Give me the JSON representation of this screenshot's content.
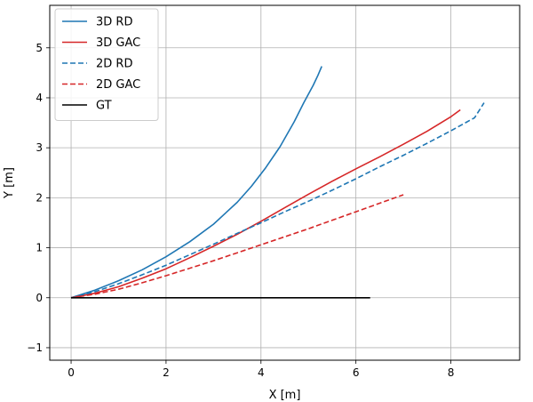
{
  "chart_data": {
    "type": "line",
    "xlabel": "X [m]",
    "ylabel": "Y [m]",
    "xlim": [
      -0.45,
      9.45
    ],
    "ylim": [
      -1.25,
      5.85
    ],
    "xticks": [
      "0",
      "2",
      "4",
      "6",
      "8"
    ],
    "yticks": [
      "−1",
      "0",
      "1",
      "2",
      "3",
      "4",
      "5"
    ],
    "grid": true,
    "legend_position": "top-left",
    "series": [
      {
        "name": "3D RD",
        "color": "#1f77b4",
        "dash": "solid",
        "x": [
          0,
          0.5,
          1.0,
          1.5,
          2.0,
          2.5,
          3.0,
          3.5,
          3.8,
          4.1,
          4.4,
          4.7,
          4.9,
          5.1,
          5.2,
          5.28
        ],
        "y": [
          0,
          0.15,
          0.34,
          0.56,
          0.82,
          1.12,
          1.47,
          1.91,
          2.23,
          2.6,
          3.02,
          3.52,
          3.9,
          4.25,
          4.45,
          4.63
        ]
      },
      {
        "name": "3D GAC",
        "color": "#d62728",
        "dash": "solid",
        "x": [
          0,
          0.5,
          1.0,
          1.5,
          2.0,
          2.5,
          3.0,
          3.5,
          4.0,
          4.5,
          5.0,
          5.5,
          6.0,
          6.5,
          7.0,
          7.5,
          8.0,
          8.2
        ],
        "y": [
          0,
          0.09,
          0.22,
          0.39,
          0.58,
          0.8,
          1.03,
          1.27,
          1.53,
          1.8,
          2.07,
          2.33,
          2.58,
          2.82,
          3.07,
          3.33,
          3.62,
          3.76
        ]
      },
      {
        "name": "2D RD",
        "color": "#1f77b4",
        "dash": "dashed",
        "x": [
          0,
          0.5,
          1.0,
          1.5,
          2.0,
          2.5,
          3.0,
          3.5,
          4.0,
          4.5,
          5.0,
          5.5,
          6.0,
          6.5,
          7.0,
          7.5,
          8.0,
          8.5,
          8.7
        ],
        "y": [
          0,
          0.12,
          0.28,
          0.46,
          0.65,
          0.86,
          1.07,
          1.29,
          1.5,
          1.72,
          1.93,
          2.15,
          2.38,
          2.62,
          2.85,
          3.09,
          3.34,
          3.6,
          3.9
        ]
      },
      {
        "name": "2D GAC",
        "color": "#d62728",
        "dash": "dashed",
        "x": [
          0,
          0.5,
          1.0,
          1.5,
          2.0,
          2.5,
          3.0,
          3.5,
          4.0,
          4.5,
          5.0,
          5.5,
          6.0,
          6.5,
          7.0
        ],
        "y": [
          0,
          0.07,
          0.17,
          0.3,
          0.44,
          0.59,
          0.74,
          0.9,
          1.06,
          1.22,
          1.38,
          1.55,
          1.72,
          1.89,
          2.06
        ]
      },
      {
        "name": "GT",
        "color": "#000000",
        "dash": "solid",
        "x": [
          0,
          6.3
        ],
        "y": [
          0,
          0
        ]
      }
    ]
  }
}
